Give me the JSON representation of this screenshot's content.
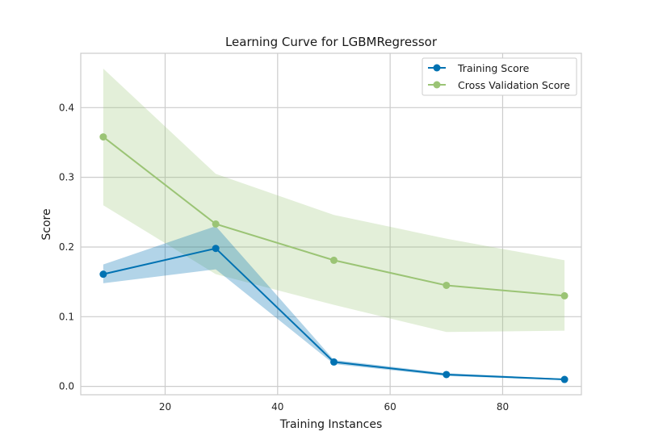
{
  "chart_data": {
    "type": "line",
    "title": "Learning Curve for LGBMRegressor",
    "xlabel": "Training Instances",
    "ylabel": "Score",
    "xlim": [
      5,
      94
    ],
    "ylim": [
      -0.012,
      0.478
    ],
    "xticks": [
      20,
      40,
      60,
      80
    ],
    "yticks": [
      0.0,
      0.1,
      0.2,
      0.3,
      0.4
    ],
    "xtick_labels": [
      "20",
      "40",
      "60",
      "80"
    ],
    "ytick_labels": [
      "0.0",
      "0.1",
      "0.2",
      "0.3",
      "0.4"
    ],
    "grid": true,
    "legend_position": "top-right",
    "x": [
      9,
      29,
      50,
      70,
      91
    ],
    "series": [
      {
        "name": "Training Score",
        "color": "#0072b2",
        "values": [
          0.161,
          0.198,
          0.035,
          0.017,
          0.01
        ],
        "band_upper": [
          0.175,
          0.23,
          0.038,
          0.019,
          0.011
        ],
        "band_lower": [
          0.148,
          0.168,
          0.032,
          0.015,
          0.009
        ]
      },
      {
        "name": "Cross Validation Score",
        "color": "#9bc475",
        "values": [
          0.358,
          0.233,
          0.181,
          0.145,
          0.13
        ],
        "band_upper": [
          0.456,
          0.305,
          0.246,
          0.212,
          0.181
        ],
        "band_lower": [
          0.26,
          0.161,
          0.117,
          0.078,
          0.08
        ]
      }
    ]
  }
}
